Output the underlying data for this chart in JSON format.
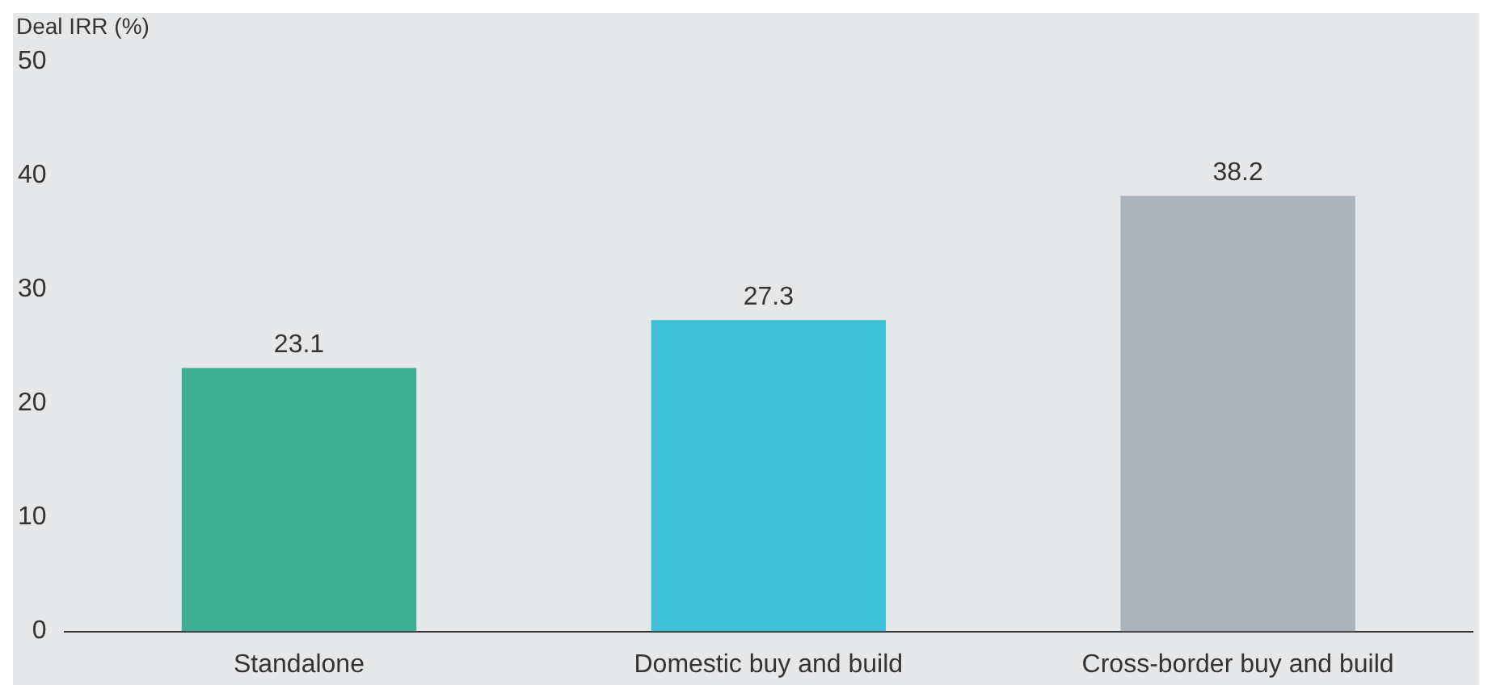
{
  "chart_data": {
    "type": "bar",
    "ylabel": "Deal IRR (%)",
    "categories": [
      "Standalone",
      "Domestic buy and build",
      "Cross-border buy and build"
    ],
    "values": [
      23.1,
      27.3,
      38.2
    ],
    "colors": [
      "#3faf94",
      "#3fc1d9",
      "#abb3ba"
    ],
    "ylim": [
      0,
      50
    ],
    "yticks": [
      0,
      10,
      20,
      30,
      40,
      50
    ],
    "grid": false,
    "legend": false,
    "data_labels": true
  }
}
